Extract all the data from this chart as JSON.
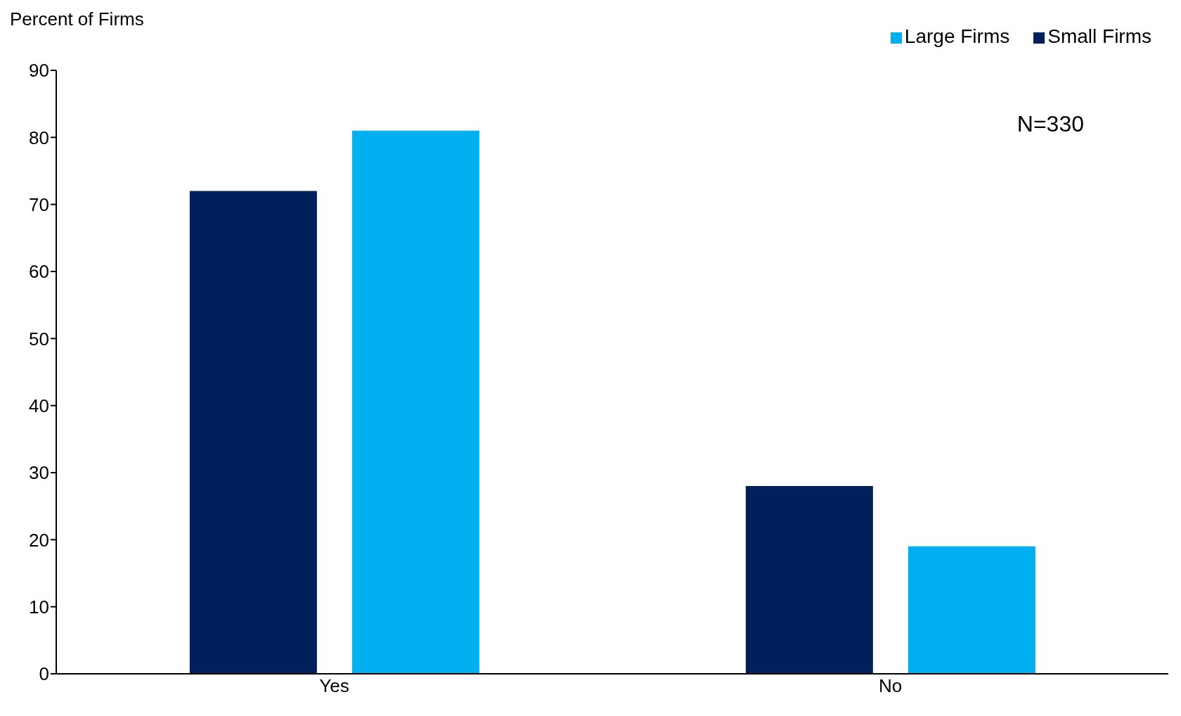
{
  "chart_data": {
    "type": "bar",
    "ylabel": "Percent of Firms",
    "categories": [
      "Yes",
      "No"
    ],
    "series": [
      {
        "name": "Small Firms",
        "color": "#00205b",
        "values": [
          72,
          28
        ]
      },
      {
        "name": "Large Firms",
        "color": "#00b0f0",
        "values": [
          81,
          19
        ]
      }
    ],
    "ylim": [
      0,
      90
    ],
    "yticks": [
      0,
      10,
      20,
      30,
      40,
      50,
      60,
      70,
      80,
      90
    ],
    "grid": false,
    "legend": "top right",
    "annotations": [
      "N=330"
    ]
  }
}
